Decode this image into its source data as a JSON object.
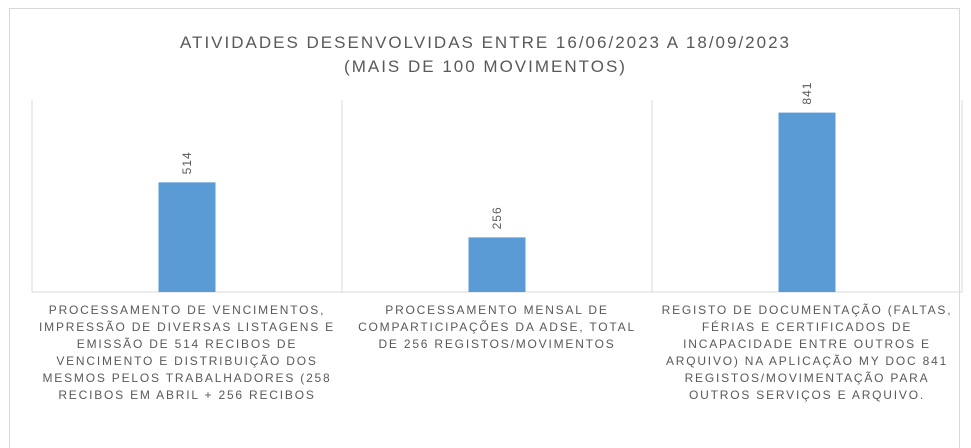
{
  "chart_data": {
    "type": "bar",
    "title": "ATIVIDADES DESENVOLVIDAS ENTRE 16/06/2023 A 18/09/2023",
    "subtitle": "(MAIS DE 100 MOVIMENTOS)",
    "categories": [
      "PROCESSAMENTO DE VENCIMENTOS, IMPRESSÃO DE DIVERSAS LISTAGENS E EMISSÃO DE 514 RECIBOS DE VENCIMENTO E DISTRIBUIÇÃO DOS MESMOS PELOS TRABALHADORES (258 RECIBOS EM ABRIL + 256 RECIBOS",
      "PROCESSAMENTO MENSAL DE COMPARTICIPAÇÕES DA ADSE, TOTAL DE 256 REGISTOS/MOVIMENTOS",
      "REGISTO DE DOCUMENTAÇÃO (FALTAS, FÉRIAS E CERTIFICADOS DE INCAPACIDADE ENTRE OUTROS E ARQUIVO) NA APLICAÇÃO MY DOC 841 REGISTOS/MOVIMENTAÇÃO PARA OUTROS SERVIÇOS E ARQUIVO."
    ],
    "values": [
      514,
      256,
      841
    ],
    "color": "#5b9bd5",
    "ylim": [
      0,
      900
    ]
  }
}
